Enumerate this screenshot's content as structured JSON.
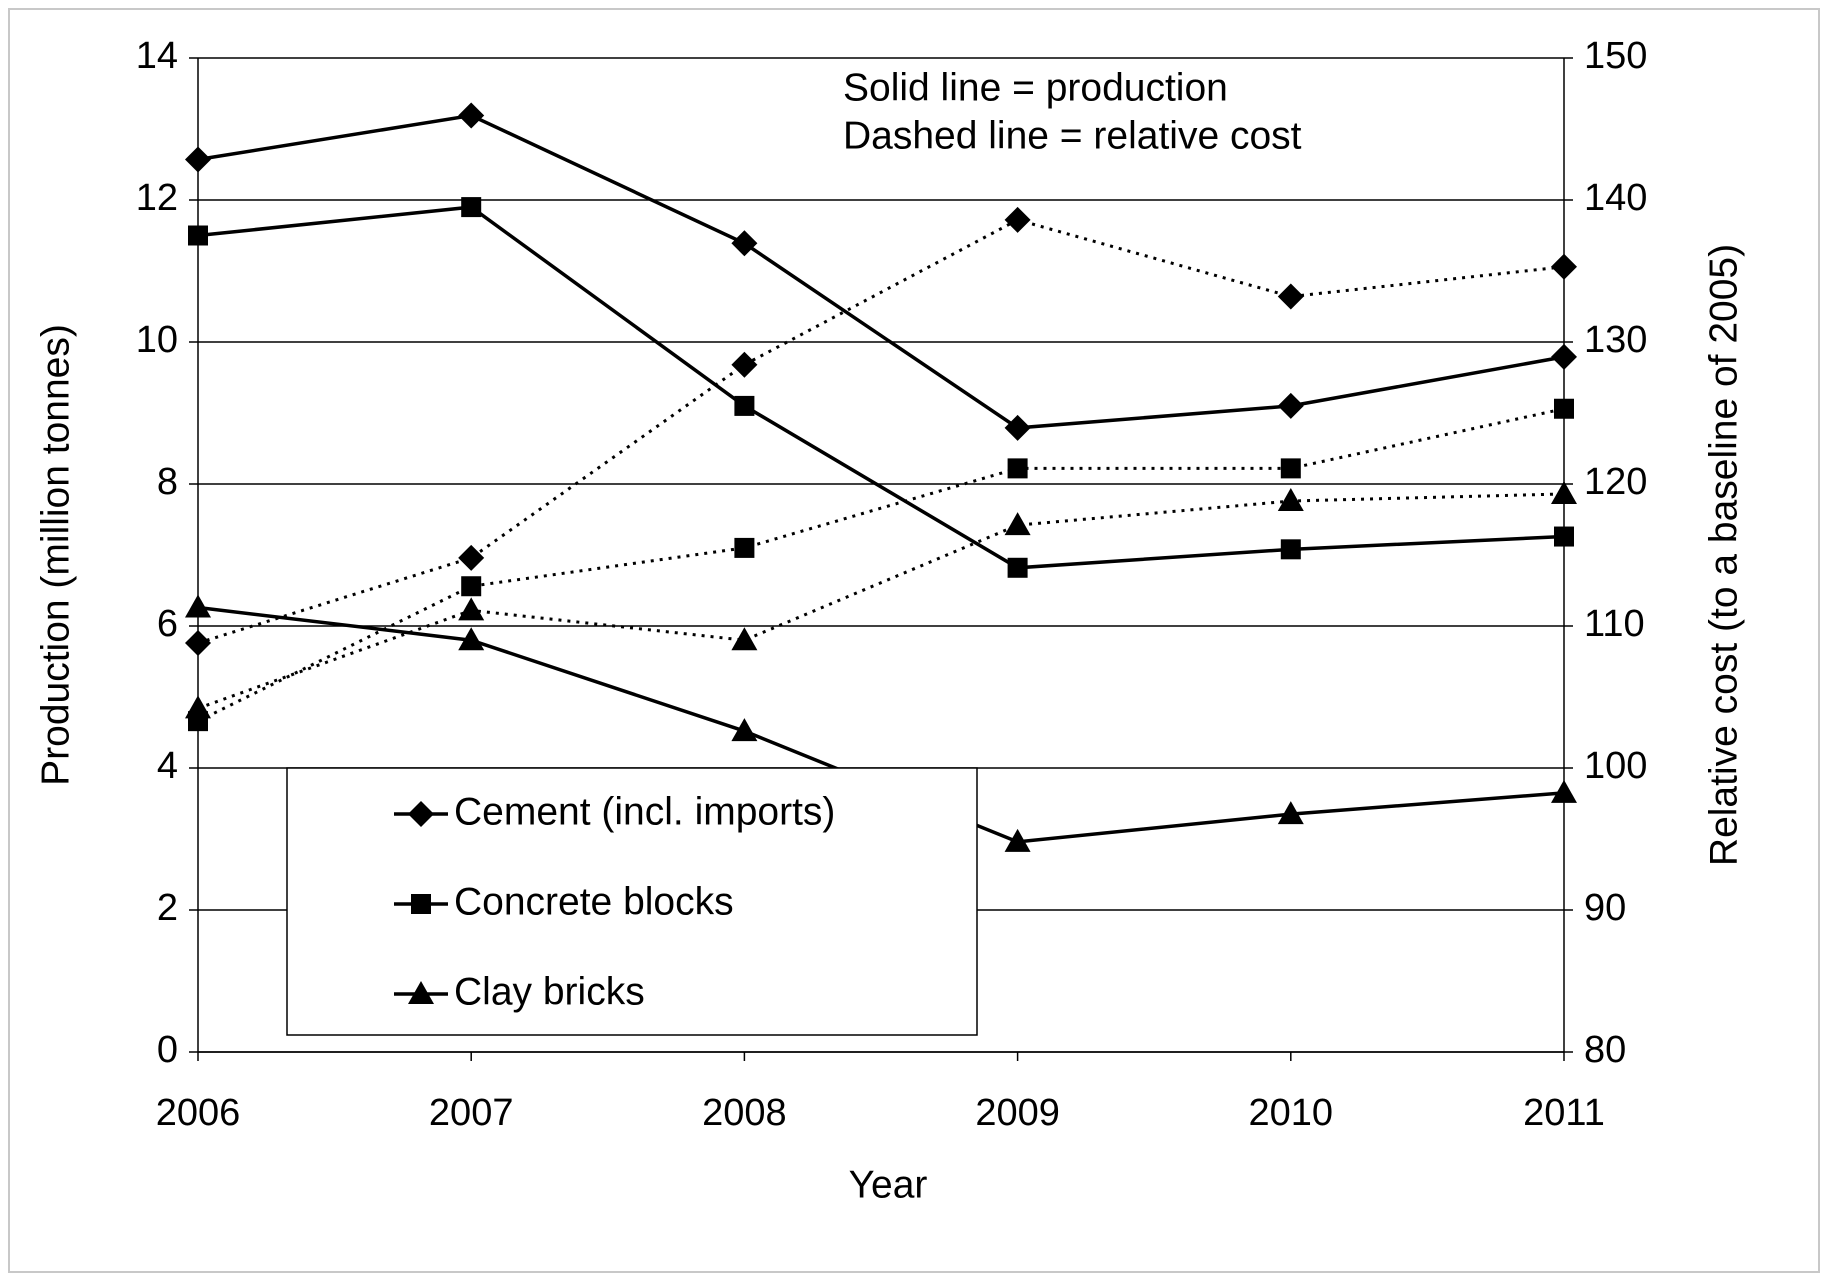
{
  "chart_data": {
    "type": "line",
    "annotations": [
      "Solid line = production",
      "Dashed line = relative cost"
    ],
    "x_label": "Year",
    "y_label": "Production (million tonnes)",
    "y2_label": "Relative cost (to a baseline of 2005)",
    "x": [
      2006,
      2007,
      2008,
      2009,
      2010,
      2011
    ],
    "xlim": [
      2006,
      2011
    ],
    "xticks": [
      2006,
      2007,
      2008,
      2009,
      2010,
      2011
    ],
    "ylim": [
      0,
      14
    ],
    "yticks": [
      0,
      2,
      4,
      6,
      8,
      10,
      12,
      14
    ],
    "y2lim": [
      80,
      150
    ],
    "y2ticks": [
      80,
      90,
      100,
      110,
      120,
      130,
      140,
      150
    ],
    "grid": true,
    "legend": "lower left",
    "series": [
      {
        "name": "Cement (incl. imports)",
        "color": "#000000",
        "marker": "diamond",
        "style": "solid",
        "values": [
          12.57,
          13.19,
          11.39,
          8.79,
          9.1,
          9.79
        ]
      },
      {
        "name": "Concrete blocks",
        "color": "#000000",
        "marker": "square",
        "style": "solid",
        "values": [
          11.5,
          11.9,
          9.1,
          6.82,
          7.08,
          7.26
        ]
      },
      {
        "name": "Clay bricks",
        "color": "#000000",
        "marker": "triangle",
        "style": "solid",
        "values": [
          6.26,
          5.8,
          4.52,
          2.96,
          3.35,
          3.65
        ]
      },
      {
        "color": "#000000",
        "marker": "diamond",
        "style": "dotted",
        "axis": "y2",
        "values": [
          108.8,
          114.8,
          128.4,
          138.6,
          133.2,
          135.3
        ]
      },
      {
        "color": "#000000",
        "marker": "square",
        "style": "dotted",
        "axis": "y2",
        "values": [
          103.3,
          112.8,
          115.5,
          121.1,
          121.1,
          125.3
        ]
      },
      {
        "color": "#000000",
        "marker": "triangle",
        "style": "dotted",
        "axis": "y2",
        "values": [
          104.2,
          111.1,
          109.0,
          117.1,
          118.8,
          119.3
        ]
      }
    ]
  }
}
